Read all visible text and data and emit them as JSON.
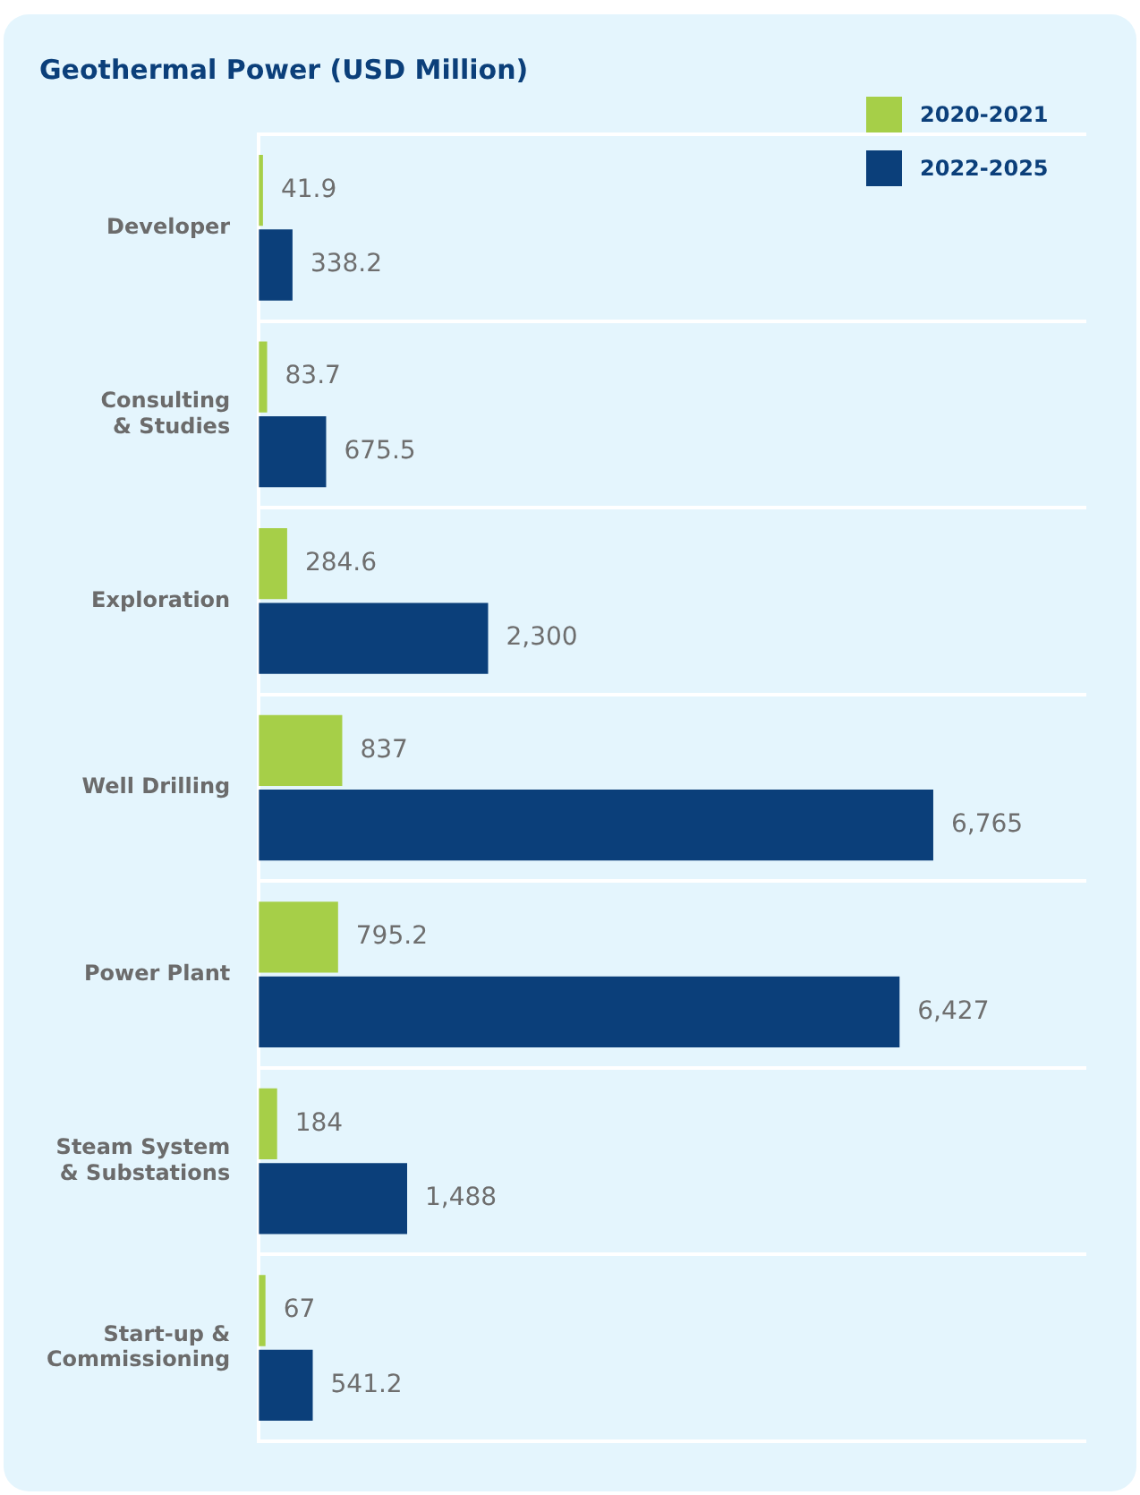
{
  "chart_data": {
    "type": "bar",
    "orientation": "horizontal",
    "title": "Geothermal Power (USD Million)",
    "categories": [
      "Developer",
      "Consulting & Studies",
      "Exploration",
      "Well Drilling",
      "Power Plant",
      "Steam System & Substations",
      "Start-up & Commissioning"
    ],
    "series": [
      {
        "name": "2020-2021",
        "color": "#a6cf48",
        "values": [
          41.9,
          83.7,
          284.6,
          837,
          795.2,
          184,
          67
        ],
        "value_labels": [
          "41.9",
          "83.7",
          "284.6",
          "837",
          "795.2",
          "184",
          "67"
        ]
      },
      {
        "name": "2022-2025",
        "color": "#0b3f7a",
        "values": [
          338.2,
          675.5,
          2300,
          6765,
          6427,
          1488,
          541.2
        ],
        "value_labels": [
          "338.2",
          "675.5",
          "2,300",
          "6,765",
          "6,427",
          "1,488",
          "541.2"
        ]
      }
    ],
    "xlim": [
      0,
      8300
    ],
    "grid": "y",
    "legend": "top right",
    "tick_labels": "y"
  }
}
